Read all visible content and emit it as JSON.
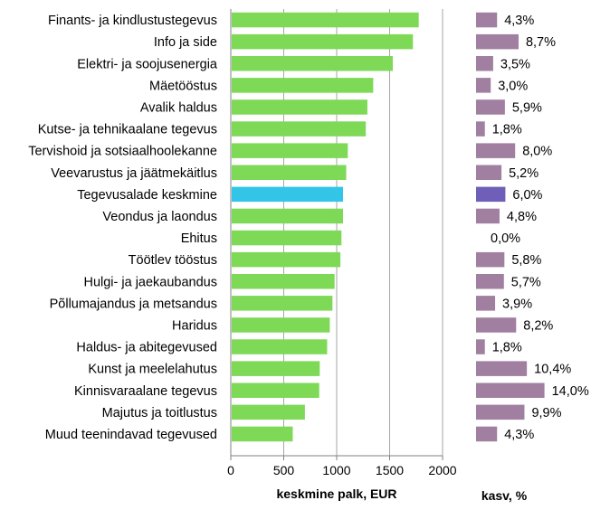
{
  "chart_data": [
    {
      "type": "bar",
      "orientation": "horizontal",
      "xlabel": "keskmine palk, EUR",
      "xlim": [
        0,
        2000
      ],
      "xticks": [
        0,
        500,
        1000,
        1500,
        2000
      ],
      "grid": "vertical",
      "colors": {
        "default": "#7ed957",
        "highlight": "#33c5e8"
      },
      "highlight_category": "Tegevusalade keskmine",
      "categories": [
        "Finants- ja kindlustustegevus",
        "Info ja side",
        "Elektri- ja soojusenergia",
        "Mäetööstus",
        "Avalik haldus",
        "Kutse- ja tehnikaalane tegevus",
        "Tervishoid ja sotsiaalhoolekanne",
        "Veevarustus ja jäätmekäitlus",
        "Tegevusalade keskmine",
        "Veondus ja laondus",
        "Ehitus",
        "Töötlev tööstus",
        "Hulgi- ja jaekaubandus",
        "Põllumajandus ja metsandus",
        "Haridus",
        "Haldus- ja abitegevused",
        "Kunst ja meelelahutus",
        "Kinnisvaraalane tegevus",
        "Majutus ja toitlustus",
        "Muud teenindavad tegevused"
      ],
      "values": [
        1775,
        1720,
        1530,
        1345,
        1290,
        1275,
        1105,
        1090,
        1060,
        1060,
        1045,
        1035,
        980,
        960,
        935,
        910,
        840,
        835,
        700,
        585
      ]
    },
    {
      "type": "bar",
      "orientation": "horizontal",
      "xlabel": "kasv, %",
      "colors": {
        "default": "#a07fa0",
        "highlight": "#6f5fb8"
      },
      "highlight_category": "Tegevusalade keskmine",
      "value_labels": [
        "4,3%",
        "8,7%",
        "3,5%",
        "3,0%",
        "5,9%",
        "1,8%",
        "8,0%",
        "5,2%",
        "6,0%",
        "4,8%",
        "0,0%",
        "5,8%",
        "5,7%",
        "3,9%",
        "8,2%",
        "1,8%",
        "10,4%",
        "14,0%",
        "9,9%",
        "4,3%"
      ],
      "values": [
        4.3,
        8.7,
        3.5,
        3.0,
        5.9,
        1.8,
        8.0,
        5.2,
        6.0,
        4.8,
        0.0,
        5.8,
        5.7,
        3.9,
        8.2,
        1.8,
        10.4,
        14.0,
        9.9,
        4.3
      ]
    }
  ]
}
